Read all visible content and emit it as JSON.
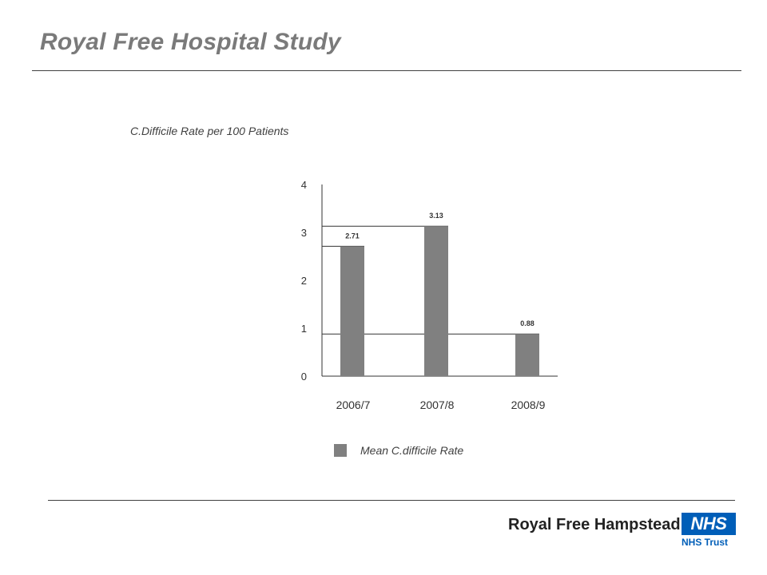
{
  "slide": {
    "title": "Royal Free Hospital Study"
  },
  "logo": {
    "name": "Royal Free Hampstead",
    "badge": "NHS",
    "sub": "NHS Trust",
    "badge_color": "#005eb8"
  },
  "chart_data": {
    "type": "bar",
    "title": "C.Difficile Rate per 100 Patients",
    "xlabel": "",
    "ylabel": "",
    "categories": [
      "2006/7",
      "2007/8",
      "2008/9"
    ],
    "series": [
      {
        "name": "Mean C.difficile Rate",
        "values": [
          2.71,
          3.13,
          0.88
        ],
        "labels": [
          "2.71",
          "3.13",
          "0.88"
        ],
        "color": "#808080"
      }
    ],
    "yticks": [
      "0",
      "1",
      "2",
      "3",
      "4"
    ],
    "ylim": [
      0,
      4
    ],
    "grid": false,
    "legend": "bottom"
  }
}
